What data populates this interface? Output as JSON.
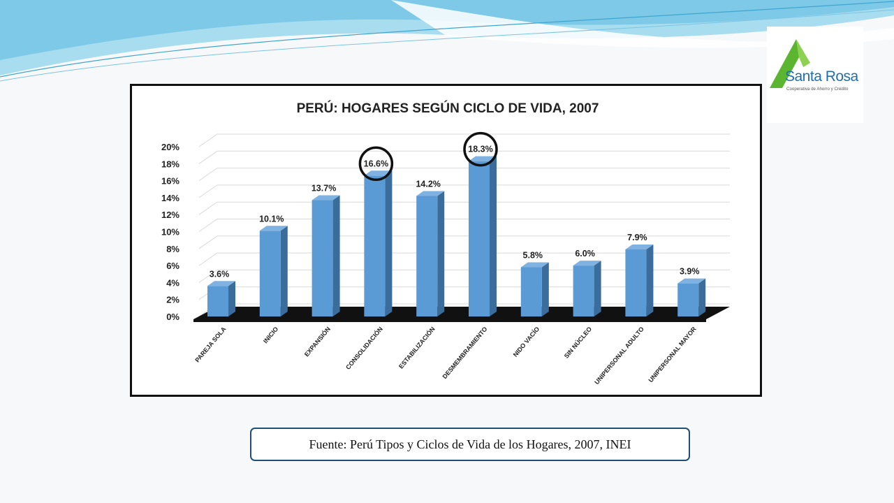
{
  "logo": {
    "name": "Santa Rosa",
    "subtitle": "Cooperativa de Ahorro y Crédito"
  },
  "colors": {
    "bar_front": "#5b9bd5",
    "bar_side": "#3a6d9c",
    "bar_top": "#7fb2e0",
    "floor": "#111111",
    "highlight_ring": "#111111",
    "wave_light": "#a8dcef",
    "wave_mid": "#5ab9e0"
  },
  "source": {
    "text": "Fuente: Perú Tipos y Ciclos de Vida de los Hogares, 2007, INEI"
  },
  "chart_data": {
    "type": "bar",
    "title": "PERÚ: HOGARES SEGÚN CICLO DE VIDA, 2007",
    "xlabel": "",
    "ylabel": "",
    "ylim": [
      0,
      20
    ],
    "yticks": [
      "0%",
      "2%",
      "4%",
      "6%",
      "8%",
      "10%",
      "12%",
      "14%",
      "16%",
      "18%",
      "20%"
    ],
    "categories": [
      "PAREJA SOLA",
      "INICIO",
      "EXPANSIÓN",
      "CONSOLIDACIÓN",
      "ESTABILIZACIÓN",
      "DESMEMBRAMIENTO",
      "NIDO VACÍO",
      "SIN NÚCLEO",
      "UNIPERSONAL ADULTO",
      "UNIPERSONAL MAYOR"
    ],
    "values": [
      3.6,
      10.1,
      13.7,
      16.6,
      14.2,
      18.3,
      5.8,
      6.0,
      7.9,
      3.9
    ],
    "labels": [
      "3.6%",
      "10.1%",
      "13.7%",
      "16.6%",
      "14.2%",
      "18.3%",
      "5.8%",
      "6.0%",
      "7.9%",
      "3.9%"
    ],
    "highlighted": [
      "CONSOLIDACIÓN",
      "DESMEMBRAMIENTO"
    ],
    "grid": true,
    "style": "3d"
  }
}
